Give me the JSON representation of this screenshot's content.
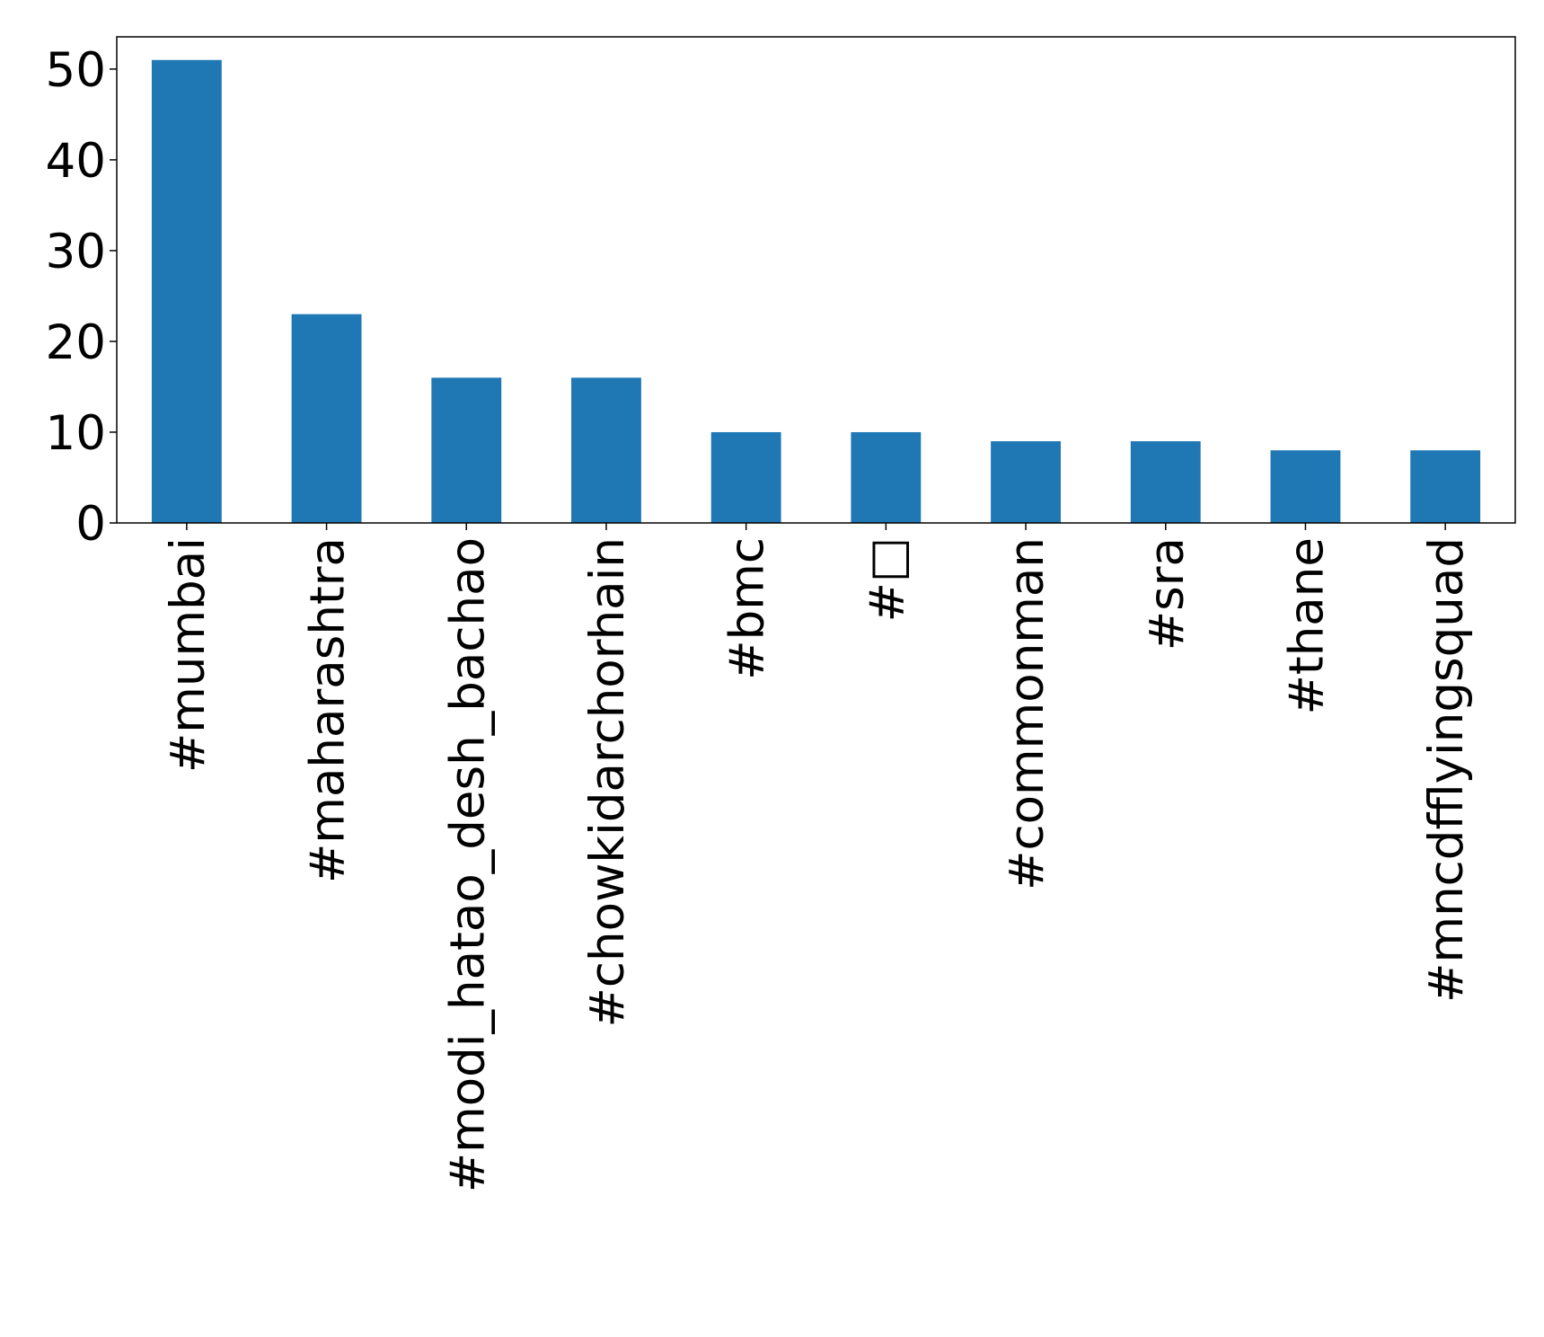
{
  "chart_data": {
    "type": "bar",
    "categories": [
      "#mumbai",
      "#maharashtra",
      "#modi_hatao_desh_bachao",
      "#chowkidarchorhain",
      "#bmc",
      "#□",
      "#commonman",
      "#sra",
      "#thane",
      "#mncdfflyingsquad"
    ],
    "values": [
      51,
      23,
      16,
      16,
      10,
      10,
      9,
      9,
      8,
      8
    ],
    "color": "#1f77b4",
    "ylim": [
      0,
      53.55
    ],
    "yticks": [
      0,
      10,
      20,
      30,
      40,
      50
    ],
    "grid": false
  }
}
